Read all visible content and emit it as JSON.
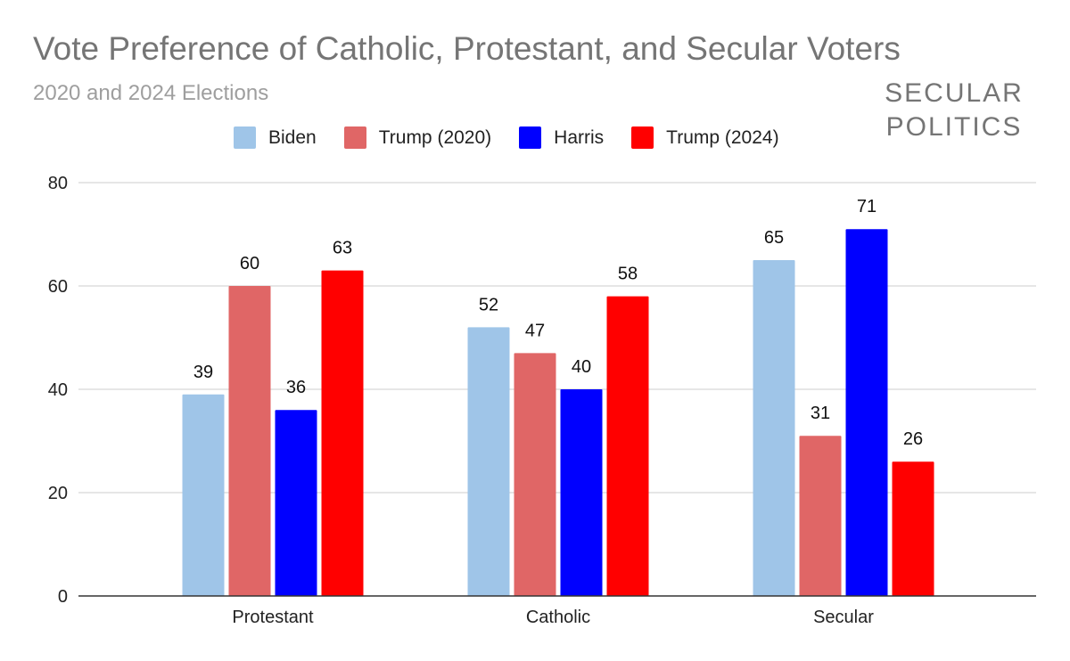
{
  "title": "Vote Preference of Catholic, Protestant, and Secular Voters",
  "subtitle": "2020 and 2024 Elections",
  "logo": {
    "line1": "SECULAR",
    "line2": "POLITICS"
  },
  "chart_data": {
    "type": "bar",
    "title": "Vote Preference of Catholic, Protestant, and Secular Voters",
    "subtitle": "2020 and 2024 Elections",
    "categories": [
      "Protestant",
      "Catholic",
      "Secular"
    ],
    "series": [
      {
        "name": "Biden",
        "color": "#9fc5e8",
        "values": [
          39,
          52,
          65
        ]
      },
      {
        "name": "Trump (2020)",
        "color": "#e06666",
        "values": [
          60,
          47,
          31
        ]
      },
      {
        "name": "Harris",
        "color": "#0000ff",
        "values": [
          36,
          40,
          71
        ]
      },
      {
        "name": "Trump (2024)",
        "color": "#ff0000",
        "values": [
          63,
          58,
          26
        ]
      }
    ],
    "ylim": [
      0,
      80
    ],
    "yticks": [
      0,
      20,
      40,
      60,
      80
    ],
    "xlabel": "",
    "ylabel": "",
    "grid": true,
    "legend": "top",
    "data_labels": true
  }
}
